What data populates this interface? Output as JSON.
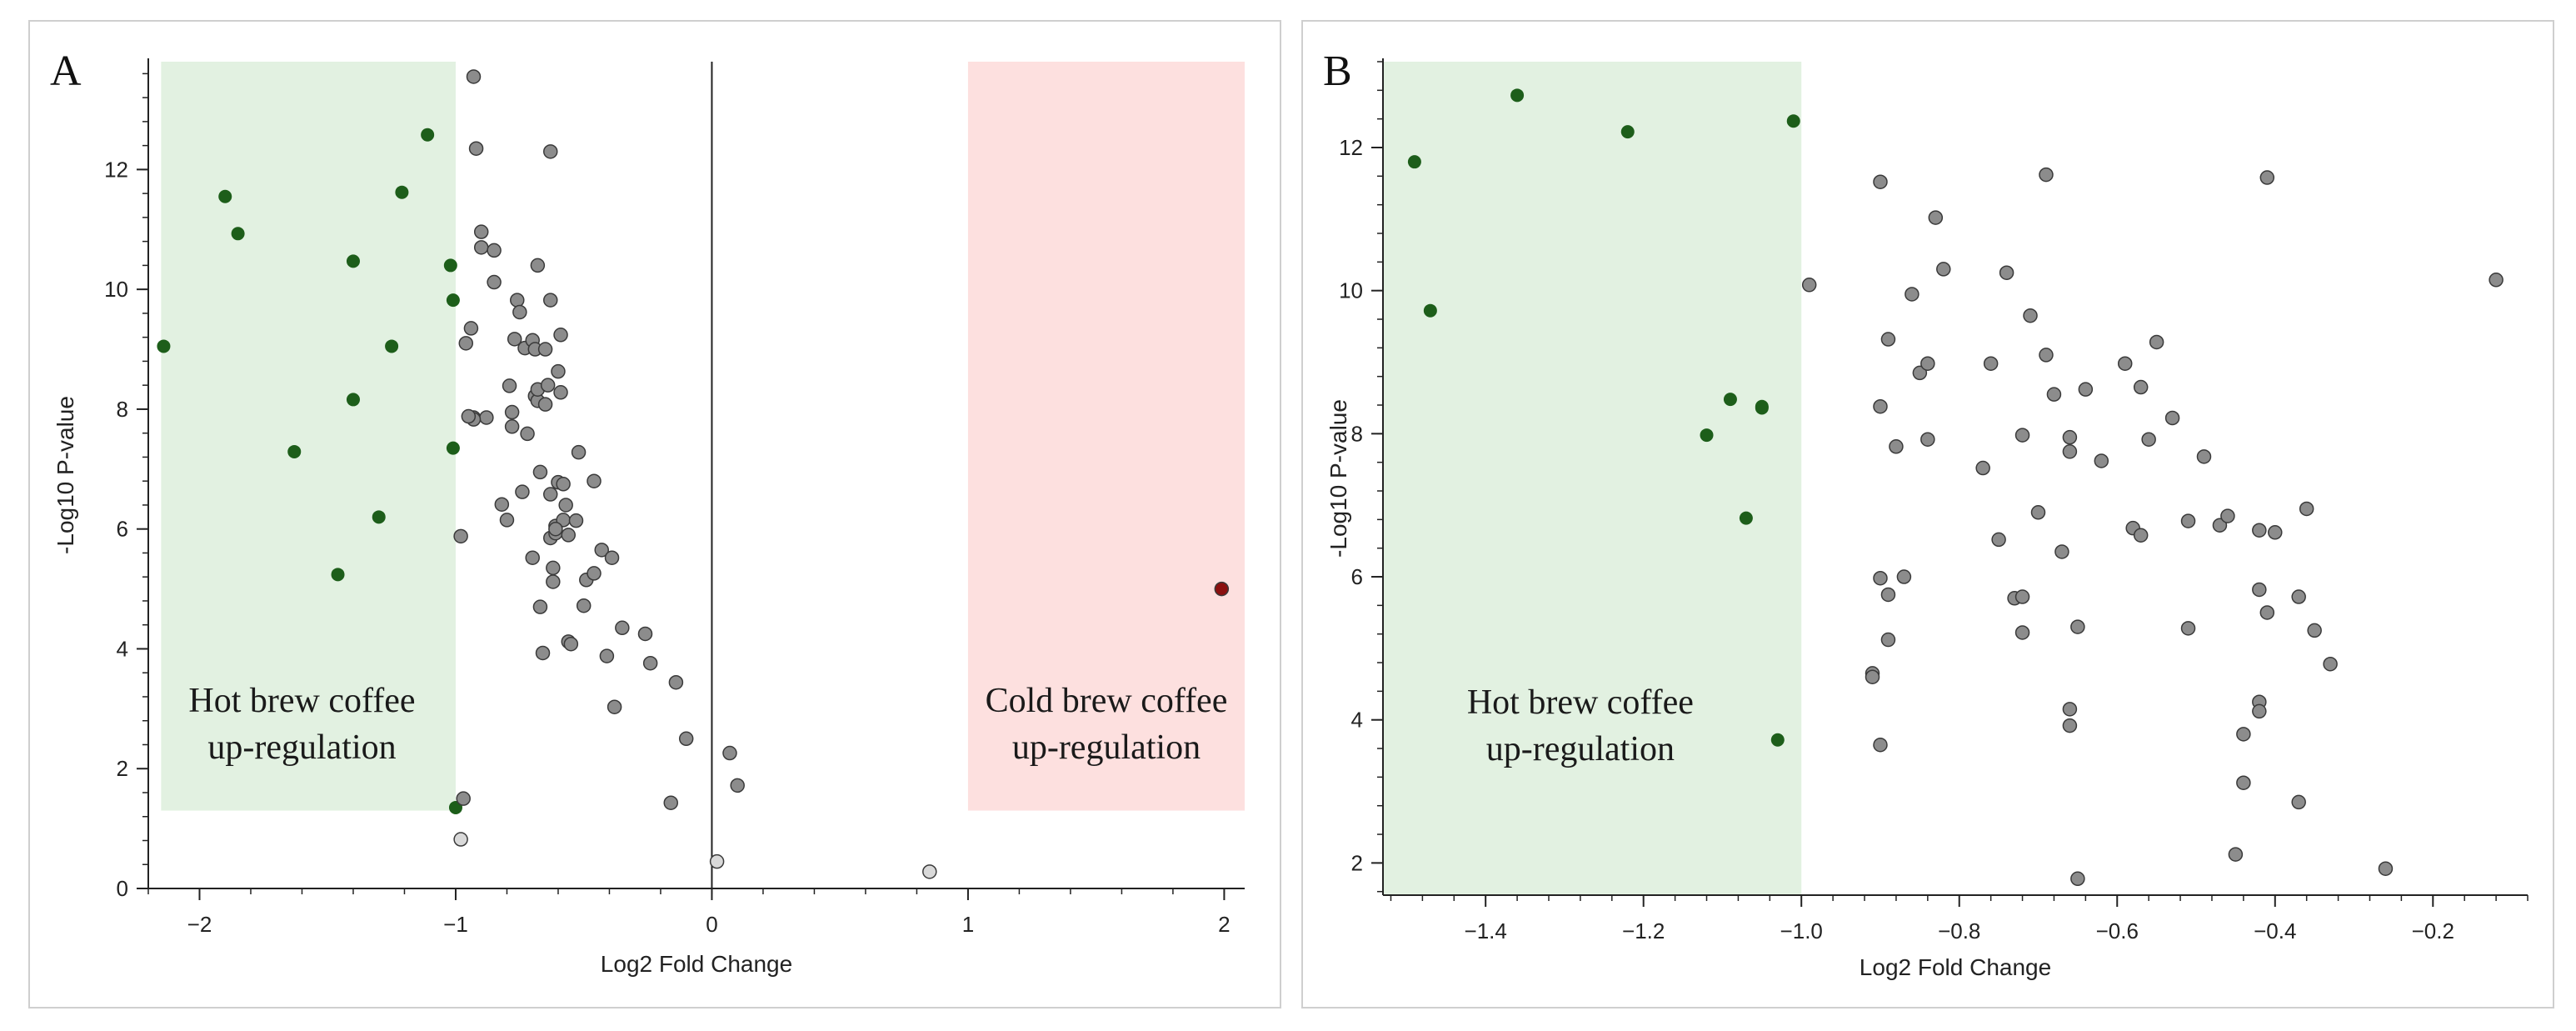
{
  "colors": {
    "hot_region": "#e2f1e1",
    "cold_region": "#fde0df",
    "green_point": "#1d5e1a",
    "gray_point": "#8c8c8c",
    "light_point": "#d9d9d9",
    "red_point": "#8b1010",
    "axis": "#222222"
  },
  "chart_data": [
    {
      "id": "A",
      "type": "scatter",
      "panel_label": "A",
      "title": "",
      "xlabel": "Log2 Fold Change",
      "ylabel": "-Log10 P-value",
      "xlim": [
        -2.2,
        2.08
      ],
      "ylim": [
        0,
        13.8
      ],
      "xticks": [
        -2,
        -1,
        0,
        1,
        2
      ],
      "xtick_labels": [
        "−2",
        "−1",
        "0",
        "1",
        "2"
      ],
      "yticks": [
        0,
        2,
        4,
        6,
        8,
        10,
        12
      ],
      "ytick_labels": [
        "0",
        "2",
        "4",
        "6",
        "8",
        "10",
        "12"
      ],
      "grid": false,
      "vertical_line_x": 0,
      "regions": [
        {
          "name": "hot",
          "x0": -2.15,
          "x1": -1.0,
          "y0": 1.3,
          "y1": 13.8,
          "label_lines": [
            "Hot brew coffee",
            "up-regulation"
          ]
        },
        {
          "name": "cold",
          "x0": 1.0,
          "x1": 2.08,
          "y0": 1.3,
          "y1": 13.8,
          "label_lines": [
            "Cold brew coffee",
            "up-regulation"
          ]
        }
      ],
      "series": [
        {
          "name": "hot-up",
          "color_key": "green_point",
          "x": [
            -2.14,
            -1.9,
            -1.85,
            -1.63,
            -1.46,
            -1.4,
            -1.4,
            -1.3,
            -1.25,
            -1.21,
            -1.11,
            -1.02,
            -1.01,
            -1.01,
            -1.0
          ],
          "y": [
            9.05,
            11.55,
            10.93,
            7.29,
            5.24,
            10.47,
            8.16,
            6.2,
            9.05,
            11.62,
            12.58,
            10.4,
            9.82,
            7.35,
            1.35
          ]
        },
        {
          "name": "not-significant",
          "color_key": "gray_point",
          "x": [
            -0.98,
            -0.94,
            -0.93,
            -0.93,
            -0.92,
            -0.9,
            -0.9,
            -0.88,
            -0.85,
            -0.85,
            -0.82,
            -0.8,
            -0.79,
            -0.78,
            -0.78,
            -0.77,
            -0.76,
            -0.75,
            -0.74,
            -0.73,
            -0.72,
            -0.7,
            -0.7,
            -0.69,
            -0.69,
            -0.68,
            -0.68,
            -0.68,
            -0.67,
            -0.67,
            -0.66,
            -0.65,
            -0.65,
            -0.64,
            -0.63,
            -0.63,
            -0.63,
            -0.62,
            -0.62,
            -0.61,
            -0.61,
            -0.6,
            -0.6,
            -0.59,
            -0.59,
            -0.58,
            -0.58,
            -0.57,
            -0.56,
            -0.56,
            -0.55,
            -0.53,
            -0.52,
            -0.5,
            -0.49,
            -0.46,
            -0.46,
            -0.43,
            -0.41,
            -0.39,
            -0.38,
            -0.35,
            -0.26,
            -0.24,
            -0.16,
            -0.14,
            -0.1,
            0.07,
            0.1,
            -0.97,
            -0.96,
            -0.93,
            -0.95,
            -0.63,
            -0.61
          ],
          "y": [
            5.88,
            9.35,
            13.55,
            7.86,
            12.35,
            10.96,
            10.7,
            7.86,
            10.12,
            10.65,
            6.41,
            6.15,
            8.39,
            7.95,
            7.71,
            9.17,
            9.82,
            9.62,
            6.62,
            9.02,
            7.59,
            5.52,
            9.15,
            9.0,
            8.22,
            10.4,
            8.14,
            8.33,
            6.95,
            4.7,
            3.93,
            9.0,
            8.08,
            8.4,
            12.3,
            6.58,
            5.85,
            5.35,
            5.12,
            6.05,
            5.93,
            6.78,
            8.63,
            8.28,
            9.24,
            6.15,
            6.75,
            6.4,
            4.12,
            5.9,
            4.08,
            6.14,
            7.28,
            4.72,
            5.15,
            5.26,
            6.8,
            5.65,
            3.88,
            5.52,
            3.03,
            4.35,
            4.25,
            3.76,
            1.43,
            3.44,
            2.5,
            2.26,
            1.72,
            1.5,
            9.1,
            7.83,
            7.88,
            9.82,
            6.0
          ]
        },
        {
          "name": "near-zero",
          "color_key": "light_point",
          "x": [
            -0.98,
            0.02,
            0.85
          ],
          "y": [
            0.82,
            0.45,
            0.28
          ]
        },
        {
          "name": "cold-up",
          "color_key": "red_point",
          "x": [
            1.99
          ],
          "y": [
            5.0
          ]
        }
      ]
    },
    {
      "id": "B",
      "type": "scatter",
      "panel_label": "B",
      "title": "",
      "xlabel": "Log2 Fold Change",
      "ylabel": "-Log10 P-value",
      "xlim": [
        -1.53,
        -0.08
      ],
      "ylim": [
        1.55,
        13.2
      ],
      "xticks": [
        -1.4,
        -1.2,
        -1.0,
        -0.8,
        -0.6,
        -0.4,
        -0.2
      ],
      "xtick_labels": [
        "−1.4",
        "−1.2",
        "−1.0",
        "−0.8",
        "−0.6",
        "−0.4",
        "−0.2"
      ],
      "yticks": [
        2,
        4,
        6,
        8,
        10,
        12
      ],
      "ytick_labels": [
        "2",
        "4",
        "6",
        "8",
        "10",
        "12"
      ],
      "grid": false,
      "regions": [
        {
          "name": "hot",
          "x0": -1.53,
          "x1": -1.0,
          "y0": 1.55,
          "y1": 13.2,
          "label_lines": [
            "Hot brew coffee",
            "up-regulation"
          ]
        }
      ],
      "series": [
        {
          "name": "hot-up",
          "color_key": "green_point",
          "x": [
            -1.49,
            -1.47,
            -1.36,
            -1.22,
            -1.12,
            -1.09,
            -1.07,
            -1.05,
            -1.05,
            -1.03,
            -1.01
          ],
          "y": [
            11.8,
            9.72,
            12.73,
            12.22,
            7.98,
            8.48,
            6.82,
            8.38,
            8.36,
            3.72,
            12.37
          ]
        },
        {
          "name": "not-significant",
          "color_key": "gray_point",
          "x": [
            -0.99,
            -0.91,
            -0.91,
            -0.9,
            -0.9,
            -0.9,
            -0.9,
            -0.89,
            -0.89,
            -0.89,
            -0.88,
            -0.87,
            -0.86,
            -0.85,
            -0.84,
            -0.84,
            -0.83,
            -0.82,
            -0.77,
            -0.76,
            -0.75,
            -0.74,
            -0.73,
            -0.72,
            -0.72,
            -0.72,
            -0.71,
            -0.7,
            -0.69,
            -0.69,
            -0.68,
            -0.67,
            -0.66,
            -0.66,
            -0.66,
            -0.66,
            -0.65,
            -0.65,
            -0.64,
            -0.62,
            -0.59,
            -0.58,
            -0.57,
            -0.57,
            -0.56,
            -0.55,
            -0.53,
            -0.51,
            -0.51,
            -0.49,
            -0.47,
            -0.46,
            -0.45,
            -0.44,
            -0.44,
            -0.42,
            -0.42,
            -0.42,
            -0.42,
            -0.41,
            -0.41,
            -0.4,
            -0.37,
            -0.37,
            -0.36,
            -0.35,
            -0.33,
            -0.26,
            -0.12
          ],
          "y": [
            10.08,
            4.65,
            4.6,
            3.65,
            5.98,
            8.38,
            11.52,
            5.75,
            5.12,
            9.32,
            7.82,
            6.0,
            9.95,
            8.85,
            7.92,
            8.98,
            11.02,
            10.3,
            7.52,
            8.98,
            6.52,
            10.25,
            5.7,
            7.98,
            5.22,
            5.72,
            9.65,
            6.9,
            11.62,
            9.1,
            8.55,
            6.35,
            4.15,
            3.92,
            7.95,
            7.75,
            1.78,
            5.3,
            8.62,
            7.62,
            8.98,
            6.68,
            6.58,
            8.65,
            7.92,
            9.28,
            8.22,
            5.28,
            6.78,
            7.68,
            6.72,
            6.85,
            2.12,
            3.8,
            3.12,
            6.65,
            5.82,
            4.25,
            4.12,
            5.5,
            11.58,
            6.62,
            5.72,
            2.85,
            6.95,
            5.25,
            4.78,
            1.92,
            10.15
          ]
        }
      ]
    }
  ]
}
